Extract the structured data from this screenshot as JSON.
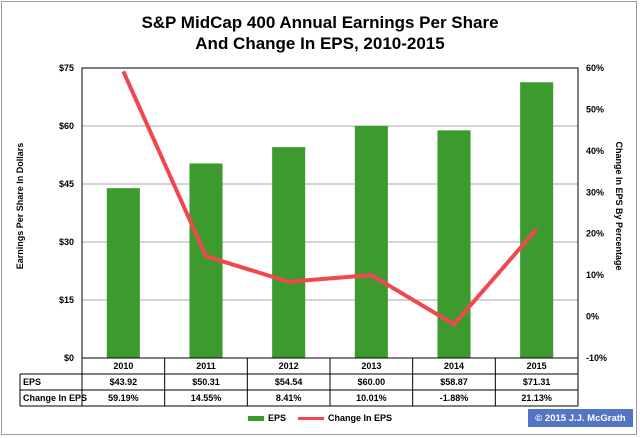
{
  "chart_data": {
    "type": "bar",
    "title": [
      "S&P MidCap 400 Annual Earnings Per Share",
      "And Change In EPS, 2010-2015"
    ],
    "categories": [
      "2010",
      "2011",
      "2012",
      "2013",
      "2014",
      "2015"
    ],
    "series": [
      {
        "name": "EPS",
        "type": "bar",
        "axis": "left",
        "color": "#3d9a2e",
        "values": [
          43.92,
          50.31,
          54.54,
          60.0,
          58.87,
          71.31
        ],
        "labels": [
          "$43.92",
          "$50.31",
          "$54.54",
          "$60.00",
          "$58.87",
          "$71.31"
        ]
      },
      {
        "name": "Change In EPS",
        "type": "line",
        "axis": "right",
        "color": "#f0484f",
        "values": [
          59.19,
          14.55,
          8.41,
          10.01,
          -1.88,
          21.13
        ],
        "labels": [
          "59.19%",
          "14.55%",
          "8.41%",
          "10.01%",
          "-1.88%",
          "21.13%"
        ]
      }
    ],
    "ylabel": "Earnings Per Share In Dollars",
    "ylabel_right": "Change In EPS By Percentage",
    "ylim": [
      0,
      75
    ],
    "ylim_right": [
      -10,
      60
    ],
    "yticks": [
      "$0",
      "$15",
      "$30",
      "$45",
      "$60",
      "$75"
    ],
    "yticks_right": [
      "-10%",
      "0%",
      "10%",
      "20%",
      "30%",
      "40%",
      "50%",
      "60%"
    ],
    "grid": true,
    "legend": "bottom"
  },
  "copyright": "© 2015 J.J. McGrath"
}
